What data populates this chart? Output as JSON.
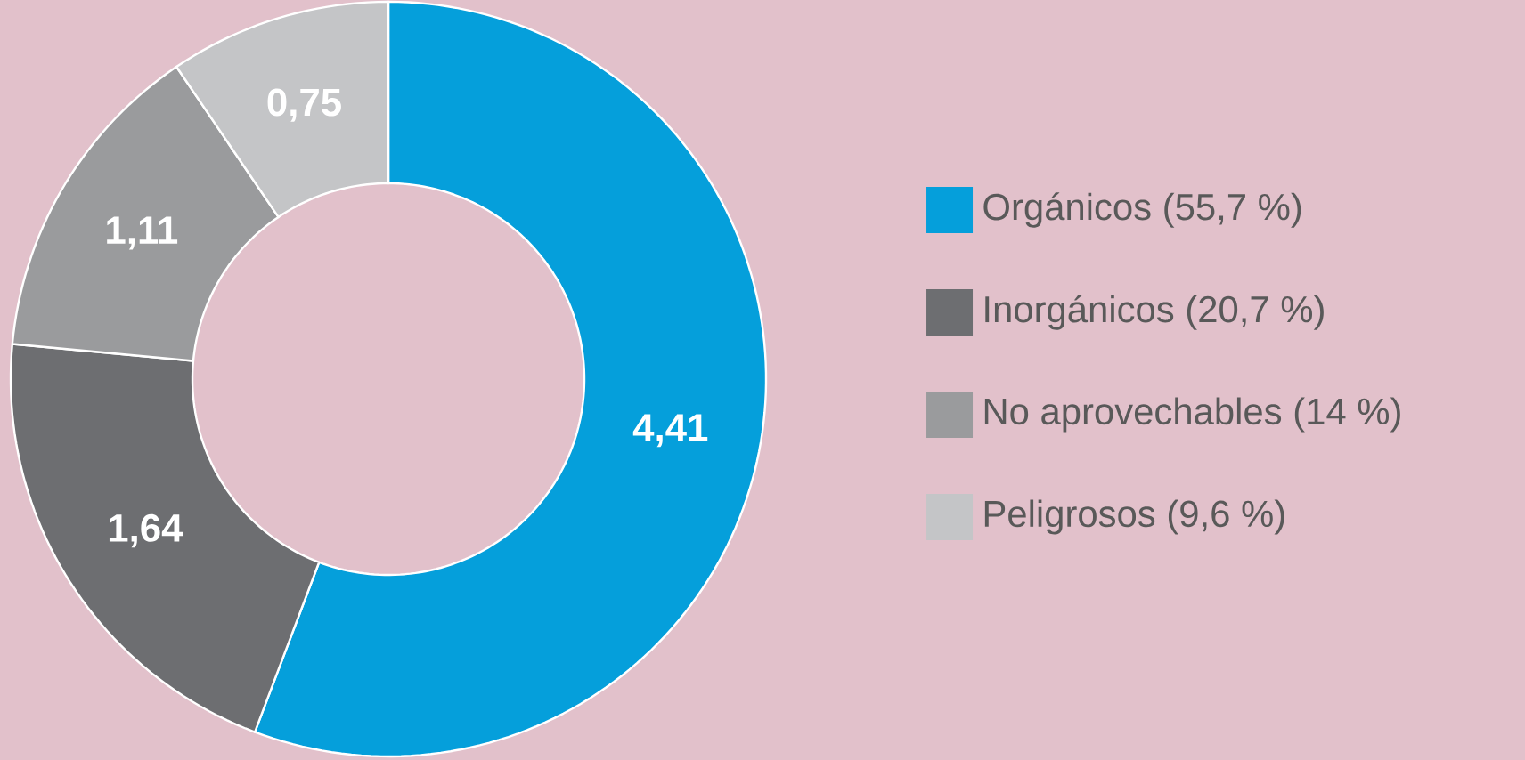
{
  "chart_data": {
    "type": "donut",
    "categories": [
      "Orgánicos (55,7 %)",
      "Inorgánicos (20,7 %)",
      "No aprovechables (14 %)",
      "Peligrosos (9,6 %)"
    ],
    "values": [
      4.41,
      1.64,
      1.11,
      0.75
    ],
    "value_labels": [
      "4,41",
      "1,64",
      "1,11",
      "0,75"
    ],
    "colors": [
      "#059fdb",
      "#6d6e71",
      "#9a9b9d",
      "#c4c5c7"
    ],
    "legend": "right"
  }
}
